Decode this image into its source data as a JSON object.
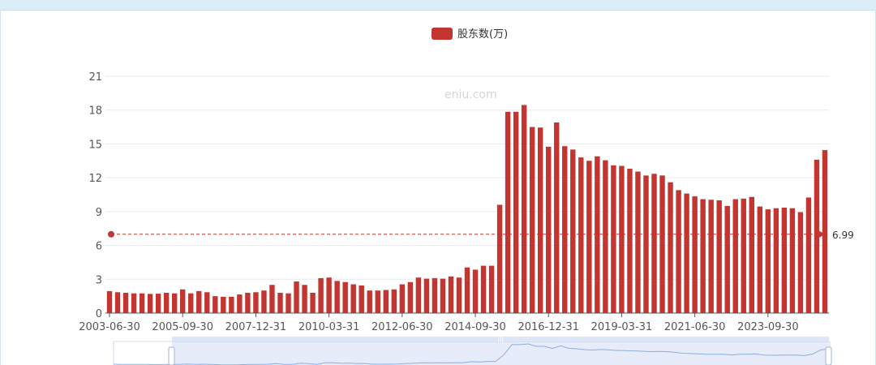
{
  "legend": {
    "label": "股东数(万)"
  },
  "watermark": "eniu.com",
  "chart_data": {
    "type": "bar",
    "color": "#c23531",
    "ylim": [
      0,
      21
    ],
    "yticks": [
      0,
      3,
      6,
      9,
      12,
      15,
      18,
      21
    ],
    "grid": true,
    "legend_position": "top-center",
    "xlabels": [
      "2003-06-30",
      "2005-09-30",
      "2007-12-31",
      "2010-03-31",
      "2012-06-30",
      "2014-09-30",
      "2016-12-31",
      "2019-03-31",
      "2021-06-30",
      "2023-09-30"
    ],
    "xlabel_every": 9,
    "average": 6.99,
    "average_label": "6.99",
    "series": [
      {
        "name": "股东数(万)",
        "values": [
          1.95,
          1.85,
          1.8,
          1.75,
          1.75,
          1.7,
          1.72,
          1.8,
          1.75,
          2.1,
          1.75,
          1.95,
          1.85,
          1.5,
          1.45,
          1.45,
          1.65,
          1.8,
          1.85,
          2.0,
          2.5,
          1.8,
          1.75,
          2.8,
          2.5,
          1.8,
          3.1,
          3.15,
          2.85,
          2.75,
          2.55,
          2.45,
          2.0,
          2.0,
          2.05,
          2.1,
          2.55,
          2.75,
          3.15,
          3.05,
          3.1,
          3.05,
          3.25,
          3.15,
          4.05,
          3.85,
          4.2,
          4.2,
          9.6,
          17.85,
          17.85,
          18.45,
          16.5,
          16.45,
          14.75,
          16.9,
          14.8,
          14.5,
          13.8,
          13.5,
          13.9,
          13.55,
          13.1,
          13.05,
          12.8,
          12.55,
          12.2,
          12.35,
          12.2,
          11.6,
          10.9,
          10.6,
          10.35,
          10.1,
          10.05,
          10.0,
          9.5,
          10.1,
          10.15,
          10.3,
          9.45,
          9.2,
          9.3,
          9.35,
          9.3,
          8.95,
          10.25,
          13.6,
          14.45
        ]
      }
    ]
  }
}
